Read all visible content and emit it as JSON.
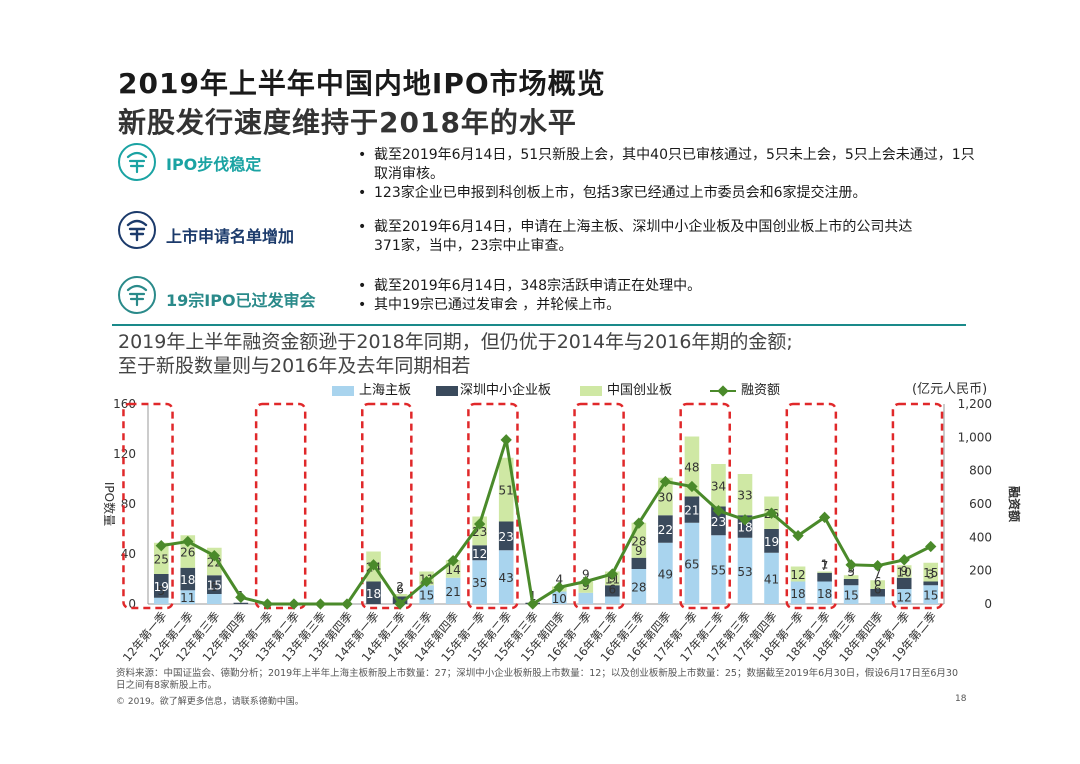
{
  "header": {
    "title": "2019年上半年中国内地IPO市场概览",
    "subtitle": "新股发行速度维持于2018年的水平"
  },
  "keypoints": [
    {
      "label": "IPO步伐稳定",
      "bullets": [
        "截至2019年6月14日，51只新股上会，其中40只已审核通过，5只未上会，5只上会未通过，1只取消审核。",
        "123家企业已申报到科创板上市，包括3家已经通过上市委员会和6家提交注册。"
      ]
    },
    {
      "label": "上市申请名单增加",
      "bullets": [
        "截至2019年6月14日，申请在上海主板、深圳中小企业板及中国创业板上市的公司共达371家，当中，23宗中止审查。"
      ]
    },
    {
      "label": "19宗IPO已过发审会",
      "bullets": [
        "截至2019年6月14日，348宗活跃申请正在处理中。",
        "其中19宗已通过发审会 ，并轮候上市。"
      ]
    }
  ],
  "section_heading": {
    "line1": "2019年上半年融资金额逊于2018年同期，但仍优于2014年与2016年期的金额;",
    "line2": "至于新股数量则与2016年及去年同期相若"
  },
  "colors": {
    "sh_main": "#a9d4ee",
    "sz_sme": "#3a4a5c",
    "chinext": "#cfe8a4",
    "proceeds": "#4a8a2a",
    "highlight_box": "#e0282a",
    "accent": "#1a8a8a",
    "icon_teal": "#1aa3a3",
    "icon_navy": "#1b3a6b",
    "icon_green": "#2a8a8a"
  },
  "icons": [
    "ipo-stamp-icon",
    "ipo-stamp-icon",
    "ipo-stamp-icon"
  ],
  "chart_data": {
    "type": "bar",
    "stacked": true,
    "categories": [
      "12年第一季",
      "12年第二季",
      "12年第三季",
      "12年第四季",
      "13年第一季",
      "13年第二季",
      "13年第三季",
      "13年第四季",
      "14年第一季",
      "14年第二季",
      "14年第三季",
      "14年第四季",
      "15年第一季",
      "15年第二季",
      "15年第三季",
      "15年第四季",
      "16年第一季",
      "16年第二季",
      "16年第三季",
      "16年第四季",
      "17年第一季",
      "17年第二季",
      "17年第三季",
      "17年第四季",
      "18年第一季",
      "18年第二季",
      "18年第三季",
      "18年第四季",
      "19年第一季",
      "19年第二季"
    ],
    "series": [
      {
        "name": "上海主板",
        "axis": "left",
        "values": [
          5,
          11,
          8,
          0,
          0,
          0,
          0,
          0,
          0,
          0,
          15,
          21,
          35,
          43,
          0,
          10,
          9,
          6,
          28,
          49,
          65,
          55,
          53,
          41,
          18,
          18,
          15,
          6,
          12,
          15
        ]
      },
      {
        "name": "深圳中小企业板",
        "axis": "left",
        "values": [
          19,
          18,
          15,
          1,
          0,
          0,
          0,
          0,
          18,
          6,
          0,
          0,
          12,
          23,
          1,
          0,
          0,
          9,
          9,
          22,
          21,
          23,
          18,
          19,
          0,
          7,
          5,
          6,
          9,
          3
        ]
      },
      {
        "name": "中国创业板",
        "axis": "left",
        "values": [
          25,
          26,
          22,
          0,
          0,
          0,
          0,
          0,
          24,
          2,
          11,
          14,
          23,
          51,
          0,
          4,
          9,
          11,
          28,
          30,
          48,
          34,
          33,
          26,
          12,
          1,
          3,
          7,
          10,
          15
        ]
      },
      {
        "name": "融资额",
        "axis": "right",
        "type": "line",
        "values": [
          350,
          375,
          290,
          40,
          0,
          0,
          0,
          0,
          235,
          0,
          135,
          260,
          480,
          985,
          0,
          100,
          135,
          180,
          485,
          735,
          705,
          560,
          505,
          545,
          410,
          520,
          235,
          230,
          265,
          345
        ]
      }
    ],
    "left_axis": {
      "label": "IPO数量",
      "min": 0,
      "max": 160,
      "ticks": [
        "0",
        "40",
        "80",
        "120",
        "160"
      ]
    },
    "right_axis": {
      "label": "融资额",
      "unit": "(亿元人民币)",
      "min": 0,
      "max": 1200,
      "ticks": [
        "0",
        "200",
        "400",
        "600",
        "800",
        "1,000",
        "1,200"
      ]
    },
    "highlighted_quarters": [
      "12年第一季",
      "13年第二季",
      "14年第二季",
      "15年第二季",
      "16年第二季",
      "17年第二季",
      "18年第二季",
      "19年第二季"
    ],
    "legend_position": "top",
    "grid": false
  },
  "footer": {
    "source": "资料来源：中国证监会、德勤分析；2019年上半年上海主板新股上市数量：27；深圳中小企业板新股上市数量：12；以及创业板新股上市数量：25；数据截至2019年6月30日，假设6月17日至6月30日之间有8家新股上市。",
    "copyright": "© 2019。欲了解更多信息，请联系德勤中国。",
    "page": "18"
  }
}
